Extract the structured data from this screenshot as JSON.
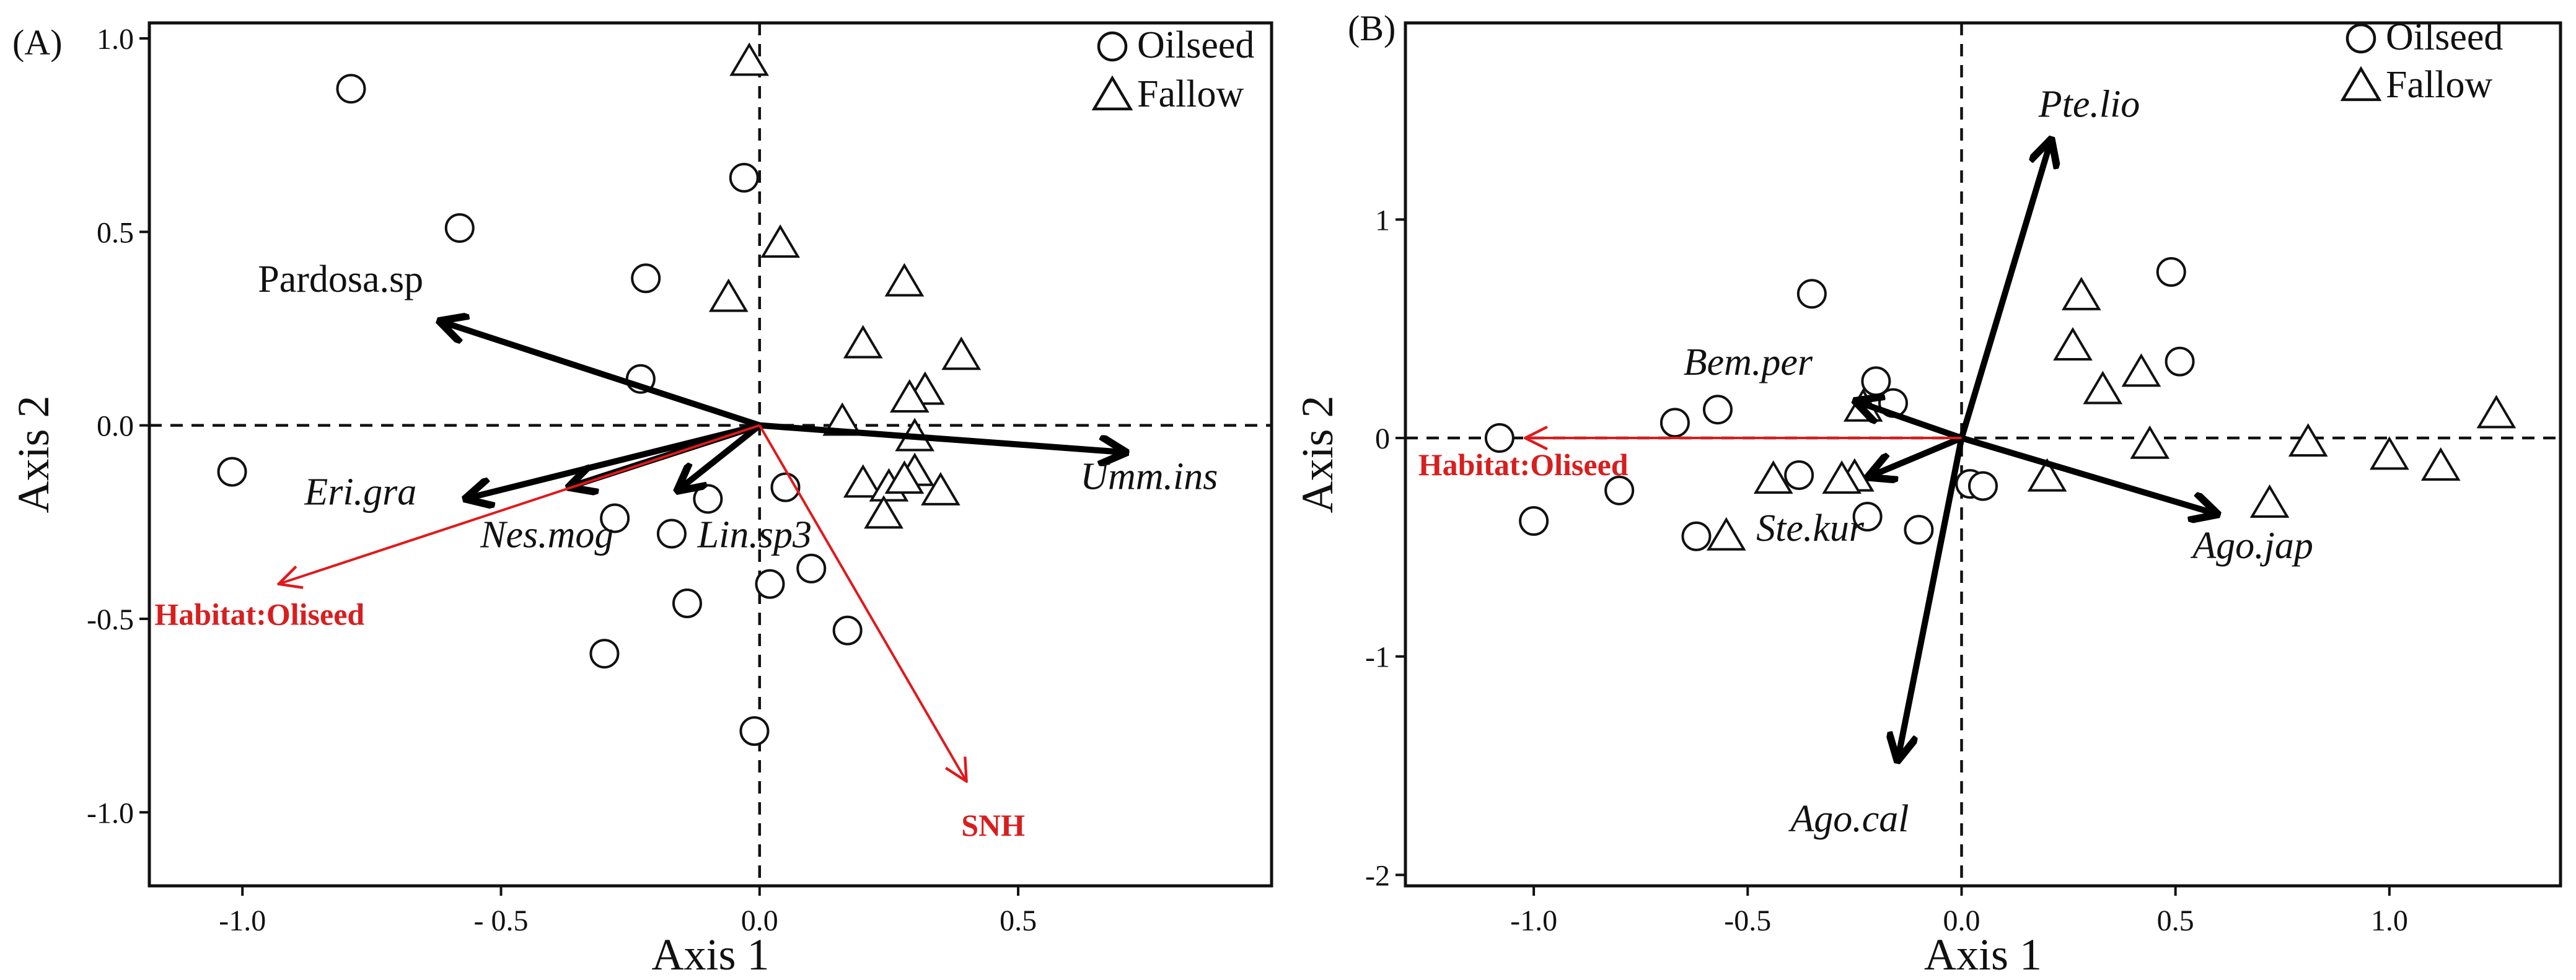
{
  "colors": {
    "species_arrow": "#000000",
    "env_arrow": "#e0191c",
    "env_text": "#d81e1e",
    "frame": "#111111"
  },
  "symbols": {
    "oilseed": "circle",
    "fallow": "triangle"
  },
  "chart_data": [
    {
      "type": "scatter",
      "panel_label": "(A)",
      "xlabel": "Axis 1",
      "ylabel": "Axis 2",
      "xlim": [
        -1.18,
        0.99
      ],
      "ylim": [
        -1.19,
        1.04
      ],
      "xticks": [
        {
          "v": -1.0,
          "label": "-1.0"
        },
        {
          "v": -0.5,
          "label": "- 0.5"
        },
        {
          "v": 0.0,
          "label": "0.0"
        },
        {
          "v": 0.5,
          "label": "0.5"
        }
      ],
      "yticks": [
        {
          "v": 1.0,
          "label": "1.0"
        },
        {
          "v": 0.5,
          "label": "0.5"
        },
        {
          "v": 0.0,
          "label": "0.0"
        },
        {
          "v": -0.5,
          "label": "-0.5"
        },
        {
          "v": -1.0,
          "label": "-1.0"
        }
      ],
      "legend": {
        "position": "top-right",
        "entries": [
          {
            "name": "Oilseed",
            "symbol": "circle"
          },
          {
            "name": "Fallow",
            "symbol": "triangle"
          }
        ]
      },
      "series": [
        {
          "name": "Oilseed",
          "symbol": "circle",
          "points": [
            [
              -0.79,
              0.87
            ],
            [
              -0.58,
              0.51
            ],
            [
              -0.22,
              0.38
            ],
            [
              -0.23,
              0.12
            ],
            [
              -1.02,
              -0.12
            ],
            [
              -0.28,
              -0.24
            ],
            [
              -0.17,
              -0.28
            ],
            [
              -0.1,
              -0.19
            ],
            [
              -0.03,
              0.64
            ],
            [
              0.05,
              -0.16
            ],
            [
              0.02,
              -0.41
            ],
            [
              0.1,
              -0.37
            ],
            [
              -0.14,
              -0.46
            ],
            [
              -0.3,
              -0.59
            ],
            [
              0.17,
              -0.53
            ],
            [
              -0.01,
              -0.79
            ]
          ]
        },
        {
          "name": "Fallow",
          "symbol": "triangle",
          "points": [
            [
              -0.02,
              0.94
            ],
            [
              0.04,
              0.47
            ],
            [
              -0.06,
              0.33
            ],
            [
              0.28,
              0.37
            ],
            [
              0.2,
              0.21
            ],
            [
              0.39,
              0.18
            ],
            [
              0.32,
              0.09
            ],
            [
              0.29,
              0.07
            ],
            [
              0.16,
              0.01
            ],
            [
              0.3,
              -0.03
            ],
            [
              0.2,
              -0.15
            ],
            [
              0.25,
              -0.16
            ],
            [
              0.3,
              -0.12
            ],
            [
              0.28,
              -0.14
            ],
            [
              0.35,
              -0.17
            ],
            [
              0.24,
              -0.23
            ]
          ]
        }
      ],
      "arrows": [
        {
          "name": "Pardosa.sp",
          "kind": "species",
          "italic": false,
          "x": -0.62,
          "y": 0.27,
          "label_at": [
            -0.97,
            0.345
          ]
        },
        {
          "name": "Eri.gra",
          "kind": "species",
          "italic": true,
          "x": -0.57,
          "y": -0.19,
          "label_at": [
            -0.88,
            -0.205
          ]
        },
        {
          "name": "Nes.mog",
          "kind": "species",
          "italic": true,
          "x": -0.37,
          "y": -0.16,
          "label_at": [
            -0.54,
            -0.315
          ]
        },
        {
          "name": "Lin.sp3",
          "kind": "species",
          "italic": true,
          "x": -0.16,
          "y": -0.17,
          "label_at": [
            -0.12,
            -0.315
          ]
        },
        {
          "name": "Umm.ins",
          "kind": "species",
          "italic": true,
          "x": 0.71,
          "y": -0.07,
          "label_at": [
            0.62,
            -0.165
          ]
        },
        {
          "name": "Habitat:Oliseed",
          "kind": "env",
          "italic": false,
          "x": -0.93,
          "y": -0.41,
          "label_at": [
            -1.17,
            -0.515
          ]
        },
        {
          "name": "SNH",
          "kind": "env",
          "italic": false,
          "x": 0.4,
          "y": -0.92,
          "label_at": [
            0.39,
            -1.06
          ]
        }
      ]
    },
    {
      "type": "scatter",
      "panel_label": "(B)",
      "xlabel": "Axis 1",
      "ylabel": "Axis 2",
      "xlim": [
        -1.3,
        1.4
      ],
      "ylim": [
        -2.05,
        1.9
      ],
      "xticks": [
        {
          "v": -1.0,
          "label": "-1.0"
        },
        {
          "v": -0.5,
          "label": "-0.5"
        },
        {
          "v": 0.0,
          "label": "0.0"
        },
        {
          "v": 0.5,
          "label": "0.5"
        },
        {
          "v": 1.0,
          "label": "1.0"
        }
      ],
      "yticks": [
        {
          "v": 1,
          "label": "1"
        },
        {
          "v": 0,
          "label": "0"
        },
        {
          "v": -1,
          "label": "-1"
        },
        {
          "v": -2,
          "label": "-2"
        }
      ],
      "legend": {
        "position": "top-right",
        "entries": [
          {
            "name": "Oilseed",
            "symbol": "circle"
          },
          {
            "name": "Fallow",
            "symbol": "triangle"
          }
        ]
      },
      "series": [
        {
          "name": "Oilseed",
          "symbol": "circle",
          "points": [
            [
              -1.08,
              0.0
            ],
            [
              -1.0,
              -0.38
            ],
            [
              -0.8,
              -0.24
            ],
            [
              -0.67,
              0.07
            ],
            [
              -0.57,
              0.13
            ],
            [
              -0.62,
              -0.45
            ],
            [
              -0.35,
              0.66
            ],
            [
              -0.38,
              -0.17
            ],
            [
              -0.2,
              0.26
            ],
            [
              -0.16,
              0.16
            ],
            [
              -0.22,
              -0.36
            ],
            [
              -0.1,
              -0.42
            ],
            [
              0.02,
              -0.21
            ],
            [
              0.05,
              -0.22
            ],
            [
              0.51,
              0.35
            ],
            [
              0.49,
              0.76
            ]
          ]
        },
        {
          "name": "Fallow",
          "symbol": "triangle",
          "points": [
            [
              -0.55,
              -0.45
            ],
            [
              -0.44,
              -0.19
            ],
            [
              -0.25,
              -0.18
            ],
            [
              -0.23,
              0.14
            ],
            [
              -0.28,
              -0.19
            ],
            [
              0.2,
              -0.18
            ],
            [
              0.28,
              0.65
            ],
            [
              0.26,
              0.42
            ],
            [
              0.33,
              0.22
            ],
            [
              0.42,
              0.3
            ],
            [
              0.44,
              -0.03
            ],
            [
              0.72,
              -0.3
            ],
            [
              0.81,
              -0.02
            ],
            [
              1.0,
              -0.08
            ],
            [
              1.12,
              -0.13
            ],
            [
              1.25,
              0.11
            ]
          ]
        }
      ],
      "arrows": [
        {
          "name": "Pte.lio",
          "kind": "species",
          "italic": true,
          "x": 0.21,
          "y": 1.37,
          "label_at": [
            0.18,
            1.47
          ]
        },
        {
          "name": "Bem.per",
          "kind": "species",
          "italic": true,
          "x": -0.25,
          "y": 0.17,
          "label_at": [
            -0.65,
            0.29
          ]
        },
        {
          "name": "Ste.kur",
          "kind": "species",
          "italic": true,
          "x": -0.22,
          "y": -0.18,
          "label_at": [
            -0.48,
            -0.47
          ]
        },
        {
          "name": "Ago.jap",
          "kind": "species",
          "italic": true,
          "x": 0.6,
          "y": -0.35,
          "label_at": [
            0.54,
            -0.55
          ]
        },
        {
          "name": "Ago.cal",
          "kind": "species",
          "italic": true,
          "x": -0.15,
          "y": -1.48,
          "label_at": [
            -0.4,
            -1.8
          ]
        },
        {
          "name": "Habitat:Oliseed",
          "kind": "env",
          "italic": false,
          "x": -1.02,
          "y": 0.0,
          "label_at": [
            -1.27,
            -0.17
          ]
        }
      ]
    }
  ]
}
